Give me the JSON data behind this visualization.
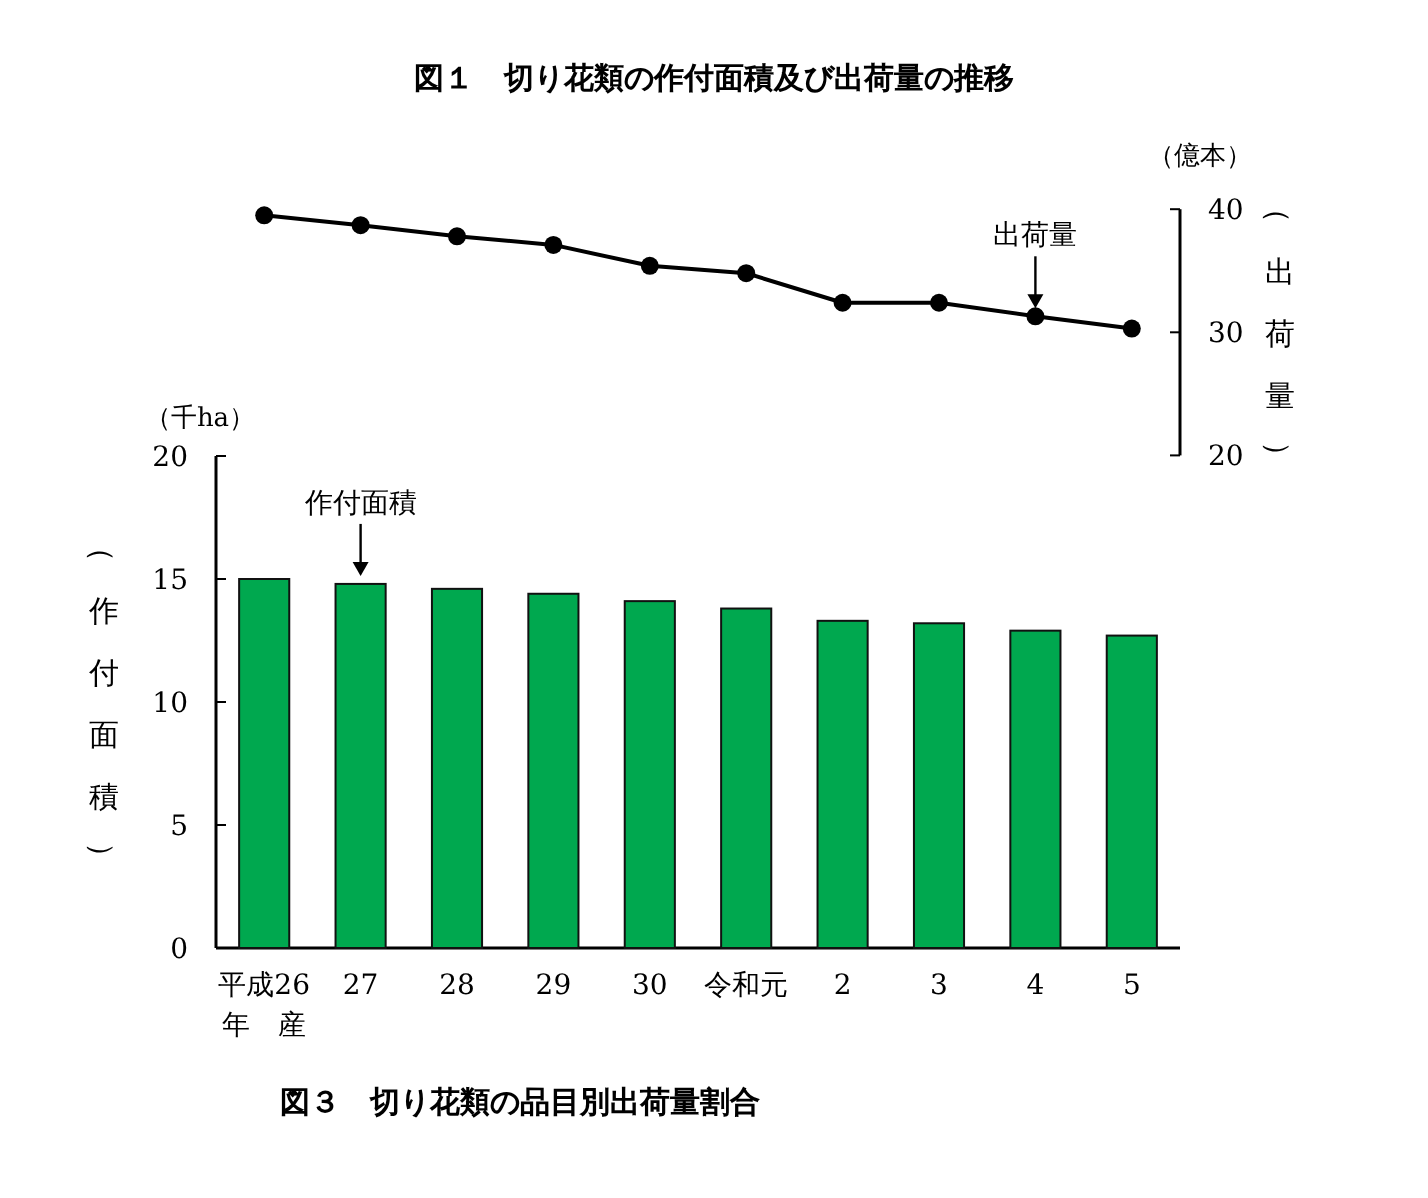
{
  "chart_data": [
    {
      "type": "line",
      "title": "図１　切り花類の作付面積及び出荷量の推移",
      "ylabel": "（出荷量）",
      "categories": [
        null,
        null,
        null,
        null,
        null,
        null,
        null,
        null,
        null,
        null
      ],
      "tick_labels": "y",
      "marker": "circle",
      "series": [
        {
          "color": "#000000",
          "values": [
            39.5,
            38.7,
            37.8,
            37.1,
            35.4,
            34.8,
            32.4,
            32.4,
            31.3,
            30.3
          ]
        }
      ],
      "ylim": [
        20,
        40
      ],
      "yticks": [
        20,
        30,
        40
      ],
      "annotations": [
        "（億本）",
        {
          "text": "出荷量",
          "y": 31.3
        }
      ]
    },
    {
      "type": "bar",
      "ylabel": "（作付面積）",
      "categories": [
        "平成26\n年　産",
        "27",
        "28",
        "29",
        "30",
        "令和元",
        "2",
        "3",
        "4",
        "5"
      ],
      "series": [
        {
          "color": "#00a84f",
          "values": [
            15.0,
            14.8,
            14.6,
            14.4,
            14.1,
            13.8,
            13.3,
            13.2,
            12.9,
            12.7
          ]
        }
      ],
      "ylim": [
        0,
        20
      ],
      "yticks": [
        0,
        5,
        10,
        15,
        20
      ],
      "annotations": [
        "（千ha）",
        {
          "text": "作付面積",
          "x": "27",
          "y": 14.8
        },
        "図３　切り花類の品目別出荷量割合"
      ]
    }
  ]
}
